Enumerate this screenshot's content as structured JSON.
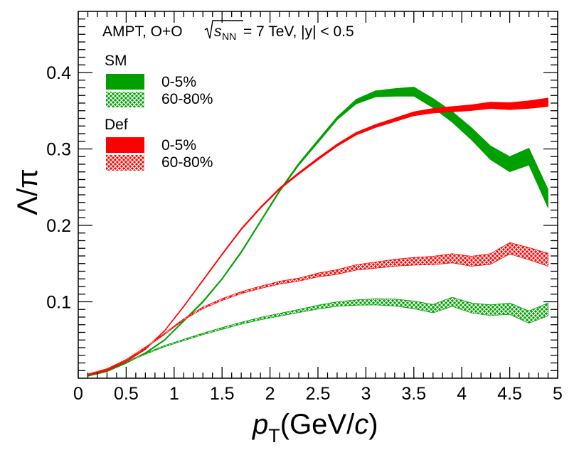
{
  "chart_data": {
    "type": "line",
    "title_parts": {
      "pre": "AMPT, O+O ",
      "s": "s",
      "sub": "NN",
      "post": " = 7 TeV, |y| < 0.5"
    },
    "xlabel": {
      "p": "p",
      "sub": "T",
      "unit_pre": "(GeV/",
      "unit_c": "c",
      "unit_post": ")"
    },
    "ylabel": "Λ/π",
    "xlim": [
      0,
      5
    ],
    "ylim": [
      0.0,
      0.48
    ],
    "xticks": [
      0,
      0.5,
      1,
      1.5,
      2,
      2.5,
      3,
      3.5,
      4,
      4.5,
      5
    ],
    "xtick_labels": [
      "0",
      "0.5",
      "1",
      "1.5",
      "2",
      "2.5",
      "3",
      "3.5",
      "4",
      "4.5",
      "5"
    ],
    "yticks": [
      0.1,
      0.2,
      0.3,
      0.4
    ],
    "ytick_labels": [
      "0.1",
      "0.2",
      "0.3",
      "0.4"
    ],
    "legend": {
      "groups": [
        {
          "title": "SM",
          "entries": [
            {
              "label": "0-5%",
              "color": "#00a000",
              "style": "solid"
            },
            {
              "label": "60-80%",
              "color": "#00a000",
              "style": "hatched"
            }
          ]
        },
        {
          "title": "Def",
          "entries": [
            {
              "label": "0-5%",
              "color": "#ff0000",
              "style": "solid"
            },
            {
              "label": "60-80%",
              "color": "#ff0000",
              "style": "hatched"
            }
          ]
        }
      ]
    },
    "series": [
      {
        "name": "SM 0-5%",
        "color": "#00a000",
        "style": "solid",
        "x": [
          0.1,
          0.3,
          0.5,
          0.7,
          0.9,
          1.1,
          1.3,
          1.5,
          1.7,
          1.9,
          2.1,
          2.3,
          2.5,
          2.7,
          2.9,
          3.1,
          3.3,
          3.5,
          3.7,
          3.9,
          4.1,
          4.3,
          4.5,
          4.7,
          4.9
        ],
        "y": [
          0.003,
          0.009,
          0.02,
          0.033,
          0.05,
          0.075,
          0.1,
          0.13,
          0.165,
          0.205,
          0.245,
          0.28,
          0.31,
          0.34,
          0.362,
          0.372,
          0.374,
          0.375,
          0.36,
          0.342,
          0.32,
          0.295,
          0.28,
          0.29,
          0.235
        ],
        "err": [
          0.0005,
          0.0005,
          0.0006,
          0.0007,
          0.0008,
          0.0009,
          0.001,
          0.001,
          0.0012,
          0.0012,
          0.0013,
          0.0015,
          0.002,
          0.002,
          0.003,
          0.004,
          0.005,
          0.006,
          0.006,
          0.007,
          0.008,
          0.009,
          0.01,
          0.011,
          0.012
        ]
      },
      {
        "name": "SM 60-80%",
        "color": "#00a000",
        "style": "hatched",
        "x": [
          0.1,
          0.3,
          0.5,
          0.7,
          0.9,
          1.1,
          1.3,
          1.5,
          1.7,
          1.9,
          2.1,
          2.3,
          2.5,
          2.7,
          2.9,
          3.1,
          3.3,
          3.5,
          3.7,
          3.9,
          4.1,
          4.3,
          4.5,
          4.7,
          4.9
        ],
        "y": [
          0.005,
          0.012,
          0.021,
          0.032,
          0.042,
          0.05,
          0.058,
          0.065,
          0.072,
          0.078,
          0.083,
          0.088,
          0.093,
          0.097,
          0.099,
          0.1,
          0.099,
          0.096,
          0.091,
          0.1,
          0.092,
          0.089,
          0.091,
          0.08,
          0.09
        ],
        "err": [
          0.0005,
          0.0005,
          0.0006,
          0.0007,
          0.0008,
          0.0009,
          0.001,
          0.0012,
          0.0013,
          0.0015,
          0.0018,
          0.002,
          0.0025,
          0.003,
          0.0035,
          0.004,
          0.0045,
          0.005,
          0.0055,
          0.006,
          0.0065,
          0.007,
          0.0075,
          0.008,
          0.0085
        ]
      },
      {
        "name": "Def 0-5%",
        "color": "#ff0000",
        "style": "solid",
        "x": [
          0.1,
          0.3,
          0.5,
          0.7,
          0.9,
          1.1,
          1.3,
          1.5,
          1.7,
          1.9,
          2.1,
          2.3,
          2.5,
          2.7,
          2.9,
          3.1,
          3.3,
          3.5,
          3.7,
          3.9,
          4.1,
          4.3,
          4.5,
          4.7,
          4.9
        ],
        "y": [
          0.004,
          0.01,
          0.022,
          0.038,
          0.062,
          0.094,
          0.128,
          0.162,
          0.195,
          0.223,
          0.248,
          0.268,
          0.287,
          0.305,
          0.32,
          0.33,
          0.338,
          0.346,
          0.35,
          0.352,
          0.354,
          0.357,
          0.356,
          0.358,
          0.361
        ],
        "err": [
          0.0005,
          0.0005,
          0.0005,
          0.0006,
          0.0006,
          0.0007,
          0.0008,
          0.0009,
          0.001,
          0.001,
          0.0011,
          0.0012,
          0.0014,
          0.0016,
          0.0018,
          0.002,
          0.0023,
          0.0026,
          0.003,
          0.0034,
          0.0038,
          0.0042,
          0.0046,
          0.005,
          0.0055
        ]
      },
      {
        "name": "Def 60-80%",
        "color": "#ff0000",
        "style": "hatched",
        "x": [
          0.1,
          0.3,
          0.5,
          0.7,
          0.9,
          1.1,
          1.3,
          1.5,
          1.7,
          1.9,
          2.1,
          2.3,
          2.5,
          2.7,
          2.9,
          3.1,
          3.3,
          3.5,
          3.7,
          3.9,
          4.1,
          4.3,
          4.5,
          4.7,
          4.9
        ],
        "y": [
          0.005,
          0.012,
          0.024,
          0.04,
          0.058,
          0.077,
          0.092,
          0.103,
          0.112,
          0.119,
          0.125,
          0.129,
          0.135,
          0.139,
          0.145,
          0.148,
          0.151,
          0.153,
          0.154,
          0.157,
          0.153,
          0.156,
          0.17,
          0.163,
          0.155
        ],
        "err": [
          0.0005,
          0.0005,
          0.0006,
          0.0007,
          0.0008,
          0.0009,
          0.001,
          0.0012,
          0.0013,
          0.0015,
          0.0018,
          0.002,
          0.0025,
          0.003,
          0.0035,
          0.004,
          0.0045,
          0.005,
          0.0055,
          0.006,
          0.0065,
          0.007,
          0.0075,
          0.008,
          0.0085
        ]
      }
    ]
  }
}
